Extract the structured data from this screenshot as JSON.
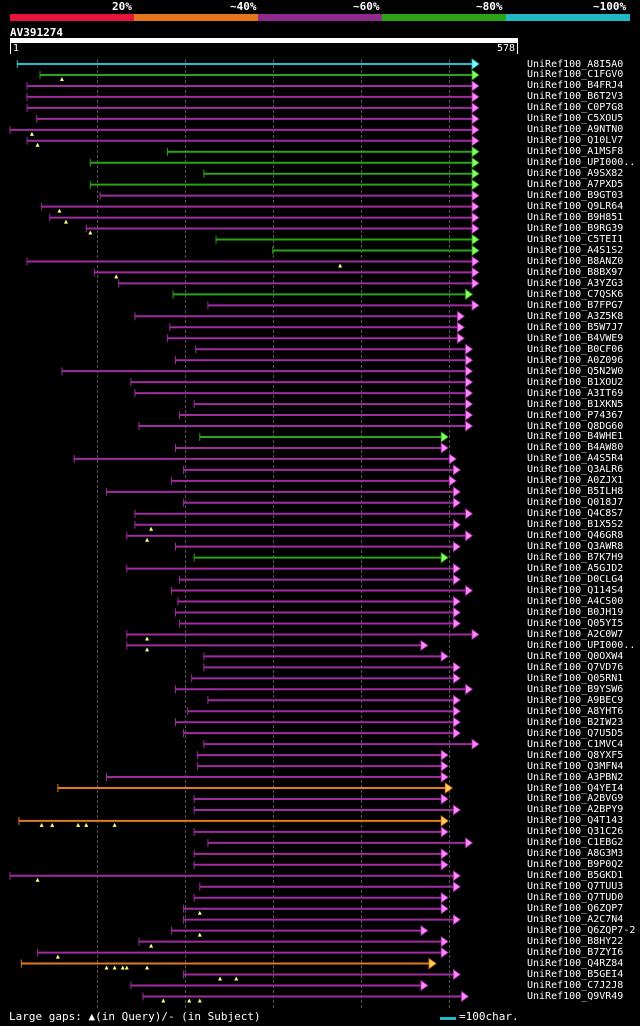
{
  "header": {
    "percent_labels": [
      "20%",
      "~40%",
      "~60%",
      "~80%",
      "~100%"
    ],
    "color_bands": [
      {
        "name": "identity-band-20",
        "color": "#e8133c"
      },
      {
        "name": "identity-band-40",
        "color": "#e6761e"
      },
      {
        "name": "identity-band-60",
        "color": "#8f2a8f"
      },
      {
        "name": "identity-band-80",
        "color": "#2aa416"
      },
      {
        "name": "identity-band-100",
        "color": "#1fb8c3"
      }
    ]
  },
  "query": {
    "id": "AV391274",
    "start": "1",
    "end": "578",
    "length": 578
  },
  "colors": {
    "cyan": "#1fc0cc",
    "green": "#2aa416",
    "purple": "#a02ca0",
    "orange": "#e47a1c",
    "arrow_purple": "#ff88ff",
    "arrow_green": "#88ff66",
    "arrow_orange": "#ffcc55",
    "arrow_cyan": "#88ffff",
    "gap_marker": "#ffff88"
  },
  "hits": [
    {
      "label": "UniRef100_A8I5A0",
      "color": "cyan",
      "start": 10,
      "end": 578,
      "gaps": []
    },
    {
      "label": "UniRef100_C1FGV0",
      "color": "green",
      "start": 38,
      "end": 578,
      "gaps": [
        65
      ]
    },
    {
      "label": "UniRef100_B4FRJ4",
      "color": "purple",
      "start": 22,
      "end": 578,
      "gaps": []
    },
    {
      "label": "UniRef100_B6T2V3",
      "color": "purple",
      "start": 22,
      "end": 578,
      "gaps": []
    },
    {
      "label": "UniRef100_C0P7G8",
      "color": "purple",
      "start": 22,
      "end": 578,
      "gaps": []
    },
    {
      "label": "UniRef100_C5XOU5",
      "color": "purple",
      "start": 34,
      "end": 578,
      "gaps": []
    },
    {
      "label": "UniRef100_A9NTN0",
      "color": "purple",
      "start": 1,
      "end": 578,
      "gaps": [
        28
      ]
    },
    {
      "label": "UniRef100_Q10LV7",
      "color": "purple",
      "start": 22,
      "end": 578,
      "gaps": [
        35
      ]
    },
    {
      "label": "UniRef100_A1MSF8",
      "color": "green",
      "start": 195,
      "end": 578,
      "gaps": []
    },
    {
      "label": "UniRef100_UPI000..",
      "color": "green",
      "start": 100,
      "end": 578,
      "gaps": []
    },
    {
      "label": "UniRef100_A9SX82",
      "color": "green",
      "start": 240,
      "end": 578,
      "gaps": []
    },
    {
      "label": "UniRef100_A7PXD5",
      "color": "green",
      "start": 100,
      "end": 578,
      "gaps": []
    },
    {
      "label": "UniRef100_B9GT03",
      "color": "purple",
      "start": 112,
      "end": 578,
      "gaps": []
    },
    {
      "label": "UniRef100_Q9LR64",
      "color": "purple",
      "start": 40,
      "end": 578,
      "gaps": [
        62
      ]
    },
    {
      "label": "UniRef100_B9H851",
      "color": "purple",
      "start": 50,
      "end": 578,
      "gaps": [
        70
      ]
    },
    {
      "label": "UniRef100_B9RG39",
      "color": "purple",
      "start": 95,
      "end": 578,
      "gaps": [
        100
      ]
    },
    {
      "label": "UniRef100_C5TEI1",
      "color": "green",
      "start": 255,
      "end": 578,
      "gaps": []
    },
    {
      "label": "UniRef100_A4S1S2",
      "color": "green",
      "start": 325,
      "end": 578,
      "gaps": []
    },
    {
      "label": "UniRef100_B8ANZ0",
      "color": "purple",
      "start": 22,
      "end": 578,
      "gaps": [
        408
      ]
    },
    {
      "label": "UniRef100_B8BX97",
      "color": "purple",
      "start": 105,
      "end": 578,
      "gaps": [
        132
      ]
    },
    {
      "label": "UniRef100_A3YZG3",
      "color": "purple",
      "start": 135,
      "end": 578,
      "gaps": []
    },
    {
      "label": "UniRef100_C7QSK6",
      "color": "green",
      "start": 202,
      "end": 570,
      "gaps": []
    },
    {
      "label": "UniRef100_B7FPG7",
      "color": "purple",
      "start": 245,
      "end": 578,
      "gaps": []
    },
    {
      "label": "UniRef100_A3Z5K8",
      "color": "purple",
      "start": 155,
      "end": 560,
      "gaps": []
    },
    {
      "label": "UniRef100_B5W7J7",
      "color": "purple",
      "start": 198,
      "end": 560,
      "gaps": []
    },
    {
      "label": "UniRef100_B4VWE9",
      "color": "purple",
      "start": 195,
      "end": 560,
      "gaps": []
    },
    {
      "label": "UniRef100_B0CF06",
      "color": "purple",
      "start": 230,
      "end": 570,
      "gaps": []
    },
    {
      "label": "UniRef100_A0Z096",
      "color": "purple",
      "start": 205,
      "end": 570,
      "gaps": []
    },
    {
      "label": "UniRef100_Q5N2W0",
      "color": "purple",
      "start": 65,
      "end": 570,
      "gaps": []
    },
    {
      "label": "UniRef100_B1XOU2",
      "color": "purple",
      "start": 150,
      "end": 570,
      "gaps": []
    },
    {
      "label": "UniRef100_A3IT69",
      "color": "purple",
      "start": 155,
      "end": 570,
      "gaps": []
    },
    {
      "label": "UniRef100_B1XKN5",
      "color": "purple",
      "start": 228,
      "end": 570,
      "gaps": []
    },
    {
      "label": "UniRef100_P74367",
      "color": "purple",
      "start": 210,
      "end": 570,
      "gaps": []
    },
    {
      "label": "UniRef100_Q8DG60",
      "color": "purple",
      "start": 160,
      "end": 570,
      "gaps": []
    },
    {
      "label": "UniRef100_B4WHE1",
      "color": "green",
      "start": 235,
      "end": 540,
      "gaps": []
    },
    {
      "label": "UniRef100_B4AW80",
      "color": "purple",
      "start": 205,
      "end": 540,
      "gaps": []
    },
    {
      "label": "UniRef100_A4S5R4",
      "color": "purple",
      "start": 80,
      "end": 550,
      "gaps": []
    },
    {
      "label": "UniRef100_Q3ALR6",
      "color": "purple",
      "start": 215,
      "end": 555,
      "gaps": []
    },
    {
      "label": "UniRef100_A0ZJX1",
      "color": "purple",
      "start": 200,
      "end": 550,
      "gaps": []
    },
    {
      "label": "UniRef100_B5ILH8",
      "color": "purple",
      "start": 120,
      "end": 555,
      "gaps": []
    },
    {
      "label": "UniRef100_Q018J7",
      "color": "purple",
      "start": 215,
      "end": 555,
      "gaps": []
    },
    {
      "label": "UniRef100_Q4C8S7",
      "color": "purple",
      "start": 155,
      "end": 570,
      "gaps": []
    },
    {
      "label": "UniRef100_B1X5S2",
      "color": "purple",
      "start": 155,
      "end": 555,
      "gaps": [
        175
      ]
    },
    {
      "label": "UniRef100_Q46GR8",
      "color": "purple",
      "start": 145,
      "end": 570,
      "gaps": [
        170
      ]
    },
    {
      "label": "UniRef100_Q3AWR8",
      "color": "purple",
      "start": 205,
      "end": 555,
      "gaps": []
    },
    {
      "label": "UniRef100_B7K7H9",
      "color": "green",
      "start": 228,
      "end": 540,
      "gaps": []
    },
    {
      "label": "UniRef100_A5GJD2",
      "color": "purple",
      "start": 145,
      "end": 555,
      "gaps": []
    },
    {
      "label": "UniRef100_D0CLG4",
      "color": "purple",
      "start": 210,
      "end": 555,
      "gaps": []
    },
    {
      "label": "UniRef100_Q114S4",
      "color": "purple",
      "start": 200,
      "end": 570,
      "gaps": []
    },
    {
      "label": "UniRef100_A4CS00",
      "color": "purple",
      "start": 208,
      "end": 555,
      "gaps": []
    },
    {
      "label": "UniRef100_B0JH19",
      "color": "purple",
      "start": 205,
      "end": 555,
      "gaps": []
    },
    {
      "label": "UniRef100_Q05YI5",
      "color": "purple",
      "start": 210,
      "end": 555,
      "gaps": []
    },
    {
      "label": "UniRef100_A2C0W7",
      "color": "purple",
      "start": 145,
      "end": 578,
      "gaps": [
        170
      ]
    },
    {
      "label": "UniRef100_UPI000..",
      "color": "purple",
      "start": 145,
      "end": 515,
      "gaps": [
        170
      ]
    },
    {
      "label": "UniRef100_Q0OXW4",
      "color": "purple",
      "start": 240,
      "end": 540,
      "gaps": []
    },
    {
      "label": "UniRef100_Q7VD76",
      "color": "purple",
      "start": 240,
      "end": 555,
      "gaps": []
    },
    {
      "label": "UniRef100_Q05RN1",
      "color": "purple",
      "start": 225,
      "end": 555,
      "gaps": []
    },
    {
      "label": "UniRef100_B9YSW6",
      "color": "purple",
      "start": 205,
      "end": 570,
      "gaps": []
    },
    {
      "label": "UniRef100_A9BEC9",
      "color": "purple",
      "start": 245,
      "end": 555,
      "gaps": []
    },
    {
      "label": "UniRef100_A8YHT6",
      "color": "purple",
      "start": 220,
      "end": 555,
      "gaps": []
    },
    {
      "label": "UniRef100_B2IW23",
      "color": "purple",
      "start": 205,
      "end": 555,
      "gaps": []
    },
    {
      "label": "UniRef100_Q7U5D5",
      "color": "purple",
      "start": 215,
      "end": 555,
      "gaps": []
    },
    {
      "label": "UniRef100_C1MVC4",
      "color": "purple",
      "start": 240,
      "end": 578,
      "gaps": []
    },
    {
      "label": "UniRef100_Q8YXF5",
      "color": "purple",
      "start": 232,
      "end": 540,
      "gaps": []
    },
    {
      "label": "UniRef100_Q3MFN4",
      "color": "purple",
      "start": 232,
      "end": 540,
      "gaps": []
    },
    {
      "label": "UniRef100_A3PBN2",
      "color": "purple",
      "start": 120,
      "end": 540,
      "gaps": []
    },
    {
      "label": "UniRef100_Q4YEI4",
      "color": "orange",
      "start": 60,
      "end": 545,
      "gaps": []
    },
    {
      "label": "UniRef100_A2BVG9",
      "color": "purple",
      "start": 228,
      "end": 540,
      "gaps": []
    },
    {
      "label": "UniRef100_A2BPY9",
      "color": "purple",
      "start": 228,
      "end": 555,
      "gaps": []
    },
    {
      "label": "UniRef100_Q4T143",
      "color": "orange",
      "start": 12,
      "end": 540,
      "gaps": [
        40,
        53,
        85,
        95,
        130
      ]
    },
    {
      "label": "UniRef100_Q31C26",
      "color": "purple",
      "start": 228,
      "end": 540,
      "gaps": []
    },
    {
      "label": "UniRef100_C1EBG2",
      "color": "purple",
      "start": 245,
      "end": 570,
      "gaps": []
    },
    {
      "label": "UniRef100_A8G3M3",
      "color": "purple",
      "start": 228,
      "end": 540,
      "gaps": []
    },
    {
      "label": "UniRef100_B9P0Q2",
      "color": "purple",
      "start": 228,
      "end": 540,
      "gaps": []
    },
    {
      "label": "UniRef100_B5GKD1",
      "color": "purple",
      "start": 1,
      "end": 555,
      "gaps": [
        35
      ]
    },
    {
      "label": "UniRef100_Q7TUU3",
      "color": "purple",
      "start": 235,
      "end": 555,
      "gaps": []
    },
    {
      "label": "UniRef100_Q7TUD0",
      "color": "purple",
      "start": 228,
      "end": 540,
      "gaps": []
    },
    {
      "label": "UniRef100_Q6ZQP7",
      "color": "purple",
      "start": 215,
      "end": 540,
      "gaps": [
        235
      ]
    },
    {
      "label": "UniRef100_A2C7N4",
      "color": "purple",
      "start": 215,
      "end": 555,
      "gaps": []
    },
    {
      "label": "UniRef100_Q6ZQP7-2",
      "color": "purple",
      "start": 200,
      "end": 515,
      "gaps": [
        235
      ]
    },
    {
      "label": "UniRef100_B8HY22",
      "color": "purple",
      "start": 160,
      "end": 540,
      "gaps": [
        175
      ]
    },
    {
      "label": "UniRef100_B7ZYI6",
      "color": "purple",
      "start": 35,
      "end": 540,
      "gaps": [
        60
      ]
    },
    {
      "label": "UniRef100_Q4RZ84",
      "color": "orange",
      "start": 15,
      "end": 525,
      "gaps": [
        120,
        130,
        140,
        145,
        170
      ]
    },
    {
      "label": "UniRef100_B5GEI4",
      "color": "purple",
      "start": 215,
      "end": 555,
      "gaps": [
        260,
        280
      ]
    },
    {
      "label": "UniRef100_C7J2J8",
      "color": "purple",
      "start": 150,
      "end": 515,
      "gaps": []
    },
    {
      "label": "UniRef100_Q9VR49",
      "color": "purple",
      "start": 165,
      "end": 565,
      "gaps": [
        190,
        222,
        235
      ]
    }
  ],
  "footer": {
    "legend": "Large gaps: ▲(in Query)/- (in Subject)",
    "scale_key": "=100char."
  }
}
